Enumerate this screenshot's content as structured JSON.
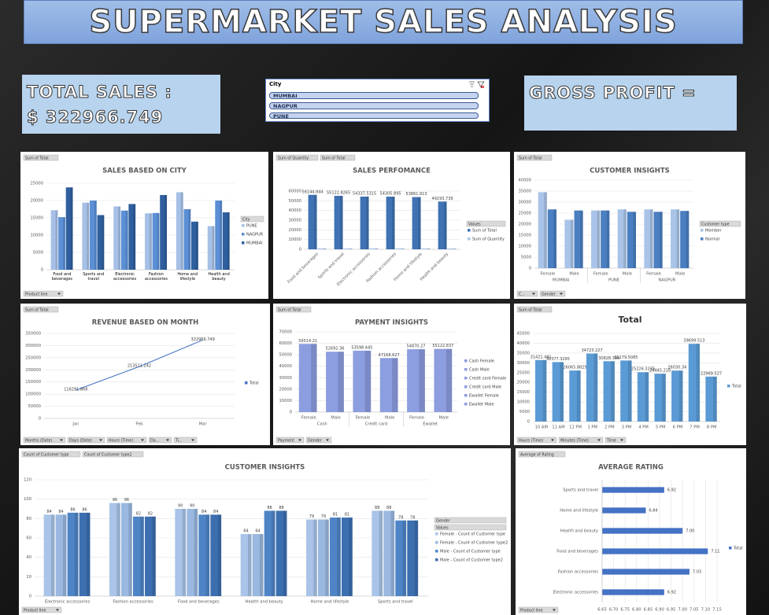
{
  "title": "SUPERMARKET SALES ANALYSIS",
  "total_sales": {
    "label": "TOTAL SALES :",
    "value": "$ 322966.749"
  },
  "gross_profit": {
    "label": "GROSS PROFIT ="
  },
  "slicer": {
    "title": "City",
    "items": [
      "MUMBAI",
      "NAGPUR",
      "PUNE"
    ]
  },
  "chart_data": [
    {
      "type": "bar",
      "title": "SALES BASED ON CITY",
      "field_buttons": [
        "Sum of Total"
      ],
      "filters": [
        "Product line"
      ],
      "categories": [
        "Food and beverages",
        "Sports and travel",
        "Electronic accessories",
        "Fashion accessories",
        "Home and lifestyle",
        "Health and beauty"
      ],
      "series": [
        {
          "name": "PUNE",
          "color": "#a6c0e6",
          "values": [
            17200,
            19400,
            18300,
            16300,
            22400,
            12600
          ]
        },
        {
          "name": "NAGPUR",
          "color": "#5b8fd6",
          "values": [
            15200,
            20000,
            17100,
            16400,
            17500,
            20000
          ]
        },
        {
          "name": "MUMBAI",
          "color": "#2f5f9e",
          "values": [
            23800,
            15800,
            19000,
            21600,
            13900,
            16600
          ]
        }
      ],
      "legend_titles": [
        "City"
      ],
      "ylim": [
        0,
        25000
      ],
      "yticks": [
        0,
        5000,
        10000,
        15000,
        20000,
        25000
      ],
      "grid": true
    },
    {
      "type": "bar",
      "title": "SALES PERFOMANCE",
      "field_buttons": [
        "Sum of Quantity",
        "Sum of Total"
      ],
      "categories": [
        "Food and beverages",
        "Sports and travel",
        "Electronic accessories",
        "Fashion accessories",
        "Home and lifestyle",
        "Health and beauty"
      ],
      "series": [
        {
          "name": "Sum of Total",
          "color": "#3f73b4",
          "values": [
            56144.844,
            55122.8265,
            54337.5315,
            54305.895,
            53861.913,
            49193.739
          ],
          "data_labels": true
        },
        {
          "name": "Sum of Quantity",
          "color": "#a9c4e8",
          "values": [
            950,
            920,
            970,
            900,
            910,
            850
          ]
        }
      ],
      "legend_titles": [
        "Values"
      ],
      "ylim": [
        0,
        60000
      ],
      "yticks": [
        0,
        10000,
        20000,
        30000,
        40000,
        50000,
        60000
      ],
      "grid": true
    },
    {
      "type": "bar",
      "title": "CUSTOMER INSIGHTS",
      "field_buttons": [
        "Sum of Total"
      ],
      "filters": [
        "C...",
        "Gender"
      ],
      "categories": [
        "Female",
        "Male",
        "Female",
        "Male",
        "Female",
        "Male"
      ],
      "groups": [
        "MUMBAI",
        "PUNE",
        "NAGPUR"
      ],
      "series": [
        {
          "name": "Member",
          "color": "#a9c4e8",
          "values": [
            34500,
            22000,
            26200,
            26700,
            26700,
            26700
          ]
        },
        {
          "name": "Normal",
          "color": "#4a7fc1",
          "values": [
            26700,
            26200,
            26200,
            25600,
            25600,
            26000
          ]
        }
      ],
      "legend_titles": [
        "Customer type"
      ],
      "ylim": [
        0,
        40000
      ],
      "yticks": [
        0,
        5000,
        10000,
        15000,
        20000,
        25000,
        30000,
        35000,
        40000
      ],
      "grid": true
    },
    {
      "type": "line",
      "title": "REVENUE BASED ON MONTH",
      "field_buttons": [
        "Sum of Total"
      ],
      "filters": [
        "Months (Date)",
        "Days (Date)",
        "Hours (Time)",
        "Da...",
        "Ti..."
      ],
      "categories": [
        "Jan",
        "Feb",
        "Mar"
      ],
      "series": [
        {
          "name": "Total",
          "color": "#4472c4",
          "values": [
            116291.868,
            213511.242,
            322966.749
          ],
          "data_labels": true
        }
      ],
      "ylim": [
        0,
        350000
      ],
      "yticks": [
        0,
        50000,
        100000,
        150000,
        200000,
        250000,
        300000,
        350000
      ],
      "grid": true
    },
    {
      "type": "bar",
      "title": "PAYMENT INSIGHTS",
      "field_buttons": [
        "Sum of Total"
      ],
      "filters": [
        "Payment",
        "Gender"
      ],
      "categories": [
        "Female",
        "Male",
        "Female",
        "Male",
        "Female",
        "Male"
      ],
      "groups": [
        "Cash",
        "Credit card",
        "Ewallet"
      ],
      "values": [
        59514.21,
        52692.36,
        53598.445,
        47168.627,
        54870.27,
        55122.837
      ],
      "color": "#8c9de0",
      "data_labels": true,
      "legend": [
        "Cash Female",
        "Cash Male",
        "Credit card Female",
        "Credit card Male",
        "Ewallet Female",
        "Ewallet Male"
      ],
      "ylim": [
        0,
        70000
      ],
      "yticks": [
        0,
        10000,
        20000,
        30000,
        40000,
        50000,
        60000,
        70000
      ],
      "grid": true
    },
    {
      "type": "bar",
      "title": "Total",
      "field_buttons": [
        "Sum of Total"
      ],
      "filters": [
        "Hours (Time)",
        "Minutes (Time)",
        "Time"
      ],
      "categories": [
        "10 AM",
        "11 AM",
        "12 PM",
        "1 PM",
        "2 PM",
        "3 PM",
        "4 PM",
        "5 PM",
        "6 PM",
        "7 PM",
        "8 PM"
      ],
      "series": [
        {
          "name": "Total",
          "color": "#5b9bd5",
          "values": [
            31421.481,
            30377.3295,
            26065.8825,
            34723.227,
            30828.399,
            31179.5085,
            25226.3235,
            24445.218,
            26030.34,
            39699.513,
            22969.527
          ],
          "data_labels": true
        }
      ],
      "ylim": [
        0,
        45000
      ],
      "yticks": [
        0,
        5000,
        10000,
        15000,
        20000,
        25000,
        30000,
        35000,
        40000,
        45000
      ],
      "grid": true
    },
    {
      "type": "bar",
      "title": "CUSTOMER INSIGHTS",
      "field_buttons": [
        "Count of Customer type",
        "Count of Customer type2"
      ],
      "filters": [
        "Product line"
      ],
      "categories": [
        "Electronic accessories",
        "Fashion accessories",
        "Food and beverages",
        "Health and beauty",
        "Home and lifestyle",
        "Sports and travel"
      ],
      "series": [
        {
          "name": "Female - Count of Customer type",
          "color": "#a9c4e8",
          "values": [
            84,
            96,
            90,
            64,
            79,
            88
          ],
          "data_labels": true
        },
        {
          "name": "Female - Count of Customer type2",
          "color": "#9ab8e0",
          "values": [
            84,
            96,
            90,
            64,
            79,
            88
          ],
          "data_labels": true
        },
        {
          "name": "Male - Count of Customer type",
          "color": "#4f84c6",
          "values": [
            86,
            82,
            84,
            88,
            81,
            78
          ],
          "data_labels": true
        },
        {
          "name": "Male - Count of Customer type2",
          "color": "#3c6fb0",
          "values": [
            86,
            82,
            84,
            88,
            81,
            78
          ],
          "data_labels": true
        }
      ],
      "legend_titles": [
        "Gender",
        "Values"
      ],
      "ylim": [
        0,
        120
      ],
      "yticks": [
        0,
        20,
        40,
        60,
        80,
        100,
        120
      ],
      "grid": true
    },
    {
      "type": "barh",
      "title": "AVERAGE RATING",
      "field_buttons": [
        "Average of Rating"
      ],
      "filters": [
        "Product line"
      ],
      "categories": [
        "Sports and travel",
        "Home and lifestyle",
        "Health and beauty",
        "Food and beverages",
        "Fashion accessories",
        "Electronic accessories"
      ],
      "series": [
        {
          "name": "Total",
          "color": "#4472c4",
          "values": [
            6.92,
            6.84,
            7.0,
            7.11,
            7.03,
            6.92
          ],
          "value_labels": [
            "6.92",
            "6.84",
            "7.00",
            "7.11",
            "7.03",
            "6.92"
          ],
          "data_labels": true
        }
      ],
      "xlim": [
        6.65,
        7.15
      ],
      "xticks": [
        6.65,
        {
          "value": 6.7,
          "label": "6.70"
        },
        6.75,
        {
          "value": 6.8,
          "label": "6.80"
        },
        6.85,
        {
          "value": 6.9,
          "label": "6.90"
        },
        6.95,
        {
          "value": 7.0,
          "label": "7.00"
        },
        7.05,
        {
          "value": 7.1,
          "label": "7.10"
        },
        7.15
      ],
      "grid": true
    }
  ]
}
